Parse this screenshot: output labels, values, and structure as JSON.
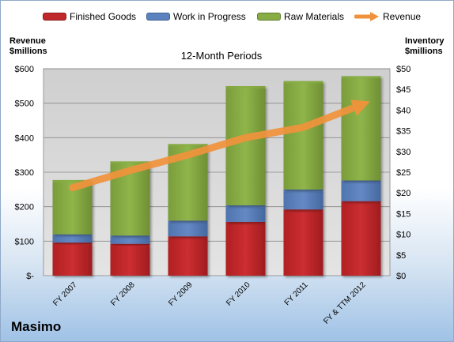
{
  "legend": {
    "finished": "Finished Goods",
    "wip": "Work in Progress",
    "raw": "Raw Materials",
    "revenue": "Revenue"
  },
  "axis": {
    "left_title_1": "Revenue",
    "left_title_2": "$millions",
    "right_title_1": "Inventory",
    "right_title_2": "$millions"
  },
  "company": "Masimo",
  "colors": {
    "finished": "#c0282b",
    "wip": "#5b82be",
    "raw": "#88ad44",
    "revenue": "#f0923c",
    "plot_bg": "#d7d7d7"
  },
  "chart_data": {
    "type": "bar",
    "stacked": true,
    "title": "12-Month Periods",
    "categories": [
      "FY 2007",
      "FY 2008",
      "FY 2009",
      "FY 2010",
      "FY 2011",
      "FY & TTM 2012"
    ],
    "series": [
      {
        "name": "Finished Goods",
        "axis": "right",
        "values": [
          8.0,
          7.7,
          9.5,
          13.0,
          16.0,
          18.0
        ]
      },
      {
        "name": "Work in Progress",
        "axis": "right",
        "values": [
          2.0,
          2.0,
          3.8,
          4.0,
          4.8,
          5.0
        ]
      },
      {
        "name": "Raw Materials",
        "axis": "right",
        "values": [
          13.1,
          17.9,
          18.5,
          28.8,
          26.2,
          25.2
        ]
      },
      {
        "name": "Revenue",
        "axis": "left",
        "type": "line",
        "values": [
          255,
          305,
          350,
          400,
          430,
          495
        ]
      }
    ],
    "left_axis": {
      "ylim": [
        0,
        600
      ],
      "ticks": [
        "$-",
        "$100",
        "$200",
        "$300",
        "$400",
        "$500",
        "$600"
      ]
    },
    "right_axis": {
      "ylim": [
        0,
        50
      ],
      "ticks": [
        "$0",
        "$5",
        "$10",
        "$15",
        "$20",
        "$25",
        "$30",
        "$35",
        "$40",
        "$45",
        "$50"
      ]
    },
    "grid": true,
    "legend_position": "top"
  }
}
